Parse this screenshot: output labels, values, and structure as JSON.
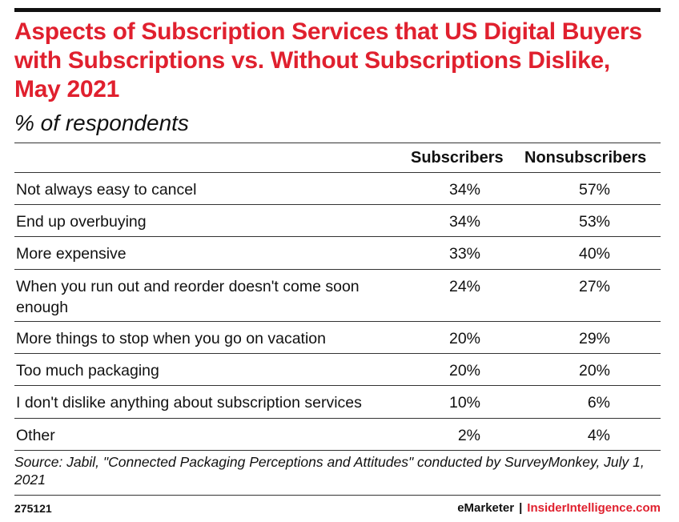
{
  "chart_data": {
    "type": "table",
    "title": "Aspects of Subscription Services that US Digital Buyers with Subscriptions vs. Without Subscriptions Dislike, May 2021",
    "subtitle": "% of respondents",
    "columns": [
      "Subscribers",
      "Nonsubscribers"
    ],
    "rows": [
      {
        "label": "Not always easy to cancel",
        "values": [
          "34%",
          "57%"
        ]
      },
      {
        "label": "End up overbuying",
        "values": [
          "34%",
          "53%"
        ]
      },
      {
        "label": "More expensive",
        "values": [
          "33%",
          "40%"
        ]
      },
      {
        "label": "When you run out and reorder doesn't come soon enough",
        "values": [
          "24%",
          "27%"
        ]
      },
      {
        "label": "More things to stop when you go on vacation",
        "values": [
          "20%",
          "29%"
        ]
      },
      {
        "label": "Too much packaging",
        "values": [
          "20%",
          "20%"
        ]
      },
      {
        "label": "I don't dislike anything about subscription services",
        "values": [
          "10%",
          "6%"
        ]
      },
      {
        "label": "Other",
        "values": [
          "2%",
          "4%"
        ]
      }
    ]
  },
  "footer": {
    "source": "Source: Jabil, \"Connected Packaging Perceptions and Attitudes\" conducted by SurveyMonkey, July 1, 2021",
    "id": "275121",
    "brand_left": "eMarketer",
    "brand_sep": "|",
    "brand_right": "InsiderIntelligence.com"
  },
  "colors": {
    "accent": "#e0202e",
    "text": "#111111",
    "rule": "#333333"
  }
}
